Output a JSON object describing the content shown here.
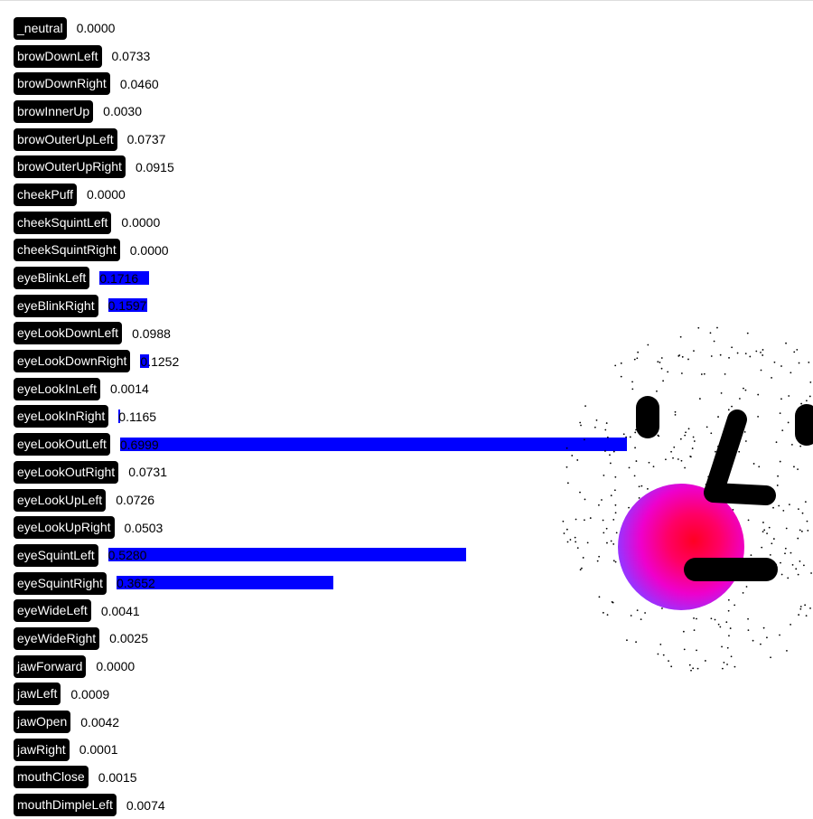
{
  "blendshapes": [
    {
      "name": "_neutral",
      "score": "0.0000"
    },
    {
      "name": "browDownLeft",
      "score": "0.0733"
    },
    {
      "name": "browDownRight",
      "score": "0.0460"
    },
    {
      "name": "browInnerUp",
      "score": "0.0030"
    },
    {
      "name": "browOuterUpLeft",
      "score": "0.0737"
    },
    {
      "name": "browOuterUpRight",
      "score": "0.0915"
    },
    {
      "name": "cheekPuff",
      "score": "0.0000"
    },
    {
      "name": "cheekSquintLeft",
      "score": "0.0000"
    },
    {
      "name": "cheekSquintRight",
      "score": "0.0000"
    },
    {
      "name": "eyeBlinkLeft",
      "score": "0.1716"
    },
    {
      "name": "eyeBlinkRight",
      "score": "0.1597"
    },
    {
      "name": "eyeLookDownLeft",
      "score": "0.0988"
    },
    {
      "name": "eyeLookDownRight",
      "score": "0.1252"
    },
    {
      "name": "eyeLookInLeft",
      "score": "0.0014"
    },
    {
      "name": "eyeLookInRight",
      "score": "0.1165"
    },
    {
      "name": "eyeLookOutLeft",
      "score": "0.6999"
    },
    {
      "name": "eyeLookOutRight",
      "score": "0.0731"
    },
    {
      "name": "eyeLookUpLeft",
      "score": "0.0726"
    },
    {
      "name": "eyeLookUpRight",
      "score": "0.0503"
    },
    {
      "name": "eyeSquintLeft",
      "score": "0.5280"
    },
    {
      "name": "eyeSquintRight",
      "score": "0.3652"
    },
    {
      "name": "eyeWideLeft",
      "score": "0.0041"
    },
    {
      "name": "eyeWideRight",
      "score": "0.0025"
    },
    {
      "name": "jawForward",
      "score": "0.0000"
    },
    {
      "name": "jawLeft",
      "score": "0.0009"
    },
    {
      "name": "jawOpen",
      "score": "0.0042"
    },
    {
      "name": "jawRight",
      "score": "0.0001"
    },
    {
      "name": "mouthClose",
      "score": "0.0015"
    },
    {
      "name": "mouthDimpleLeft",
      "score": "0.0074"
    }
  ],
  "colors": {
    "bar": "#0000ff",
    "tag": "#000000",
    "face_outer": "#cc00ff",
    "face_inner": "#ff0066"
  }
}
